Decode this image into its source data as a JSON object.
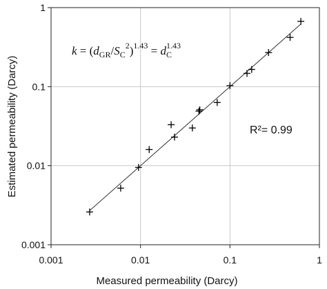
{
  "chart_data": {
    "type": "scatter",
    "xscale": "log",
    "yscale": "log",
    "xlim": [
      0.001,
      1
    ],
    "ylim": [
      0.001,
      1
    ],
    "grid": true,
    "xlabel": "Measured permeability (Darcy)",
    "ylabel": "Estimated permeability (Darcy)",
    "x_ticks": [
      "0.001",
      "0.01",
      "0.1",
      "1"
    ],
    "y_ticks": [
      "0.001",
      "0.01",
      "0.1",
      "1"
    ],
    "annotation": "R²= 0.99",
    "equation": {
      "k": "k",
      "eq1": " = (",
      "d": "d",
      "gr_sub": "GR",
      "slash": "/",
      "s": "S",
      "c_sub": "C",
      "sq": "2",
      "paren": ")",
      "exp": "1.43",
      "eq2": " = ",
      "d2": "d",
      "c_sub2": "C",
      "exp2": "1.43"
    },
    "series": [
      {
        "marker": "+",
        "x": [
          0.0027,
          0.006,
          0.0095,
          0.0125,
          0.022,
          0.024,
          0.038,
          0.045,
          0.046,
          0.072,
          0.1,
          0.155,
          0.175,
          0.27,
          0.47,
          0.62
        ],
        "y": [
          0.0026,
          0.0052,
          0.0095,
          0.016,
          0.033,
          0.023,
          0.03,
          0.049,
          0.051,
          0.063,
          0.103,
          0.147,
          0.165,
          0.27,
          0.42,
          0.67
        ]
      }
    ],
    "fit_line": {
      "x": [
        0.0027,
        0.62
      ],
      "y": [
        0.0027,
        0.62
      ]
    }
  }
}
